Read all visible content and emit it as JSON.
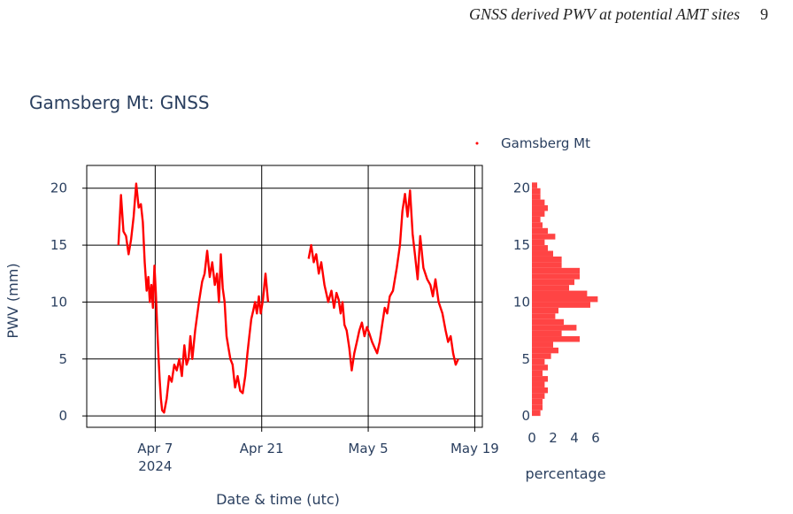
{
  "header": {
    "running_title": "GNSS derived PWV at potential AMT sites",
    "page_number": "9"
  },
  "chart_data": [
    {
      "type": "line",
      "title": "Gamsberg Mt: GNSS",
      "xlabel": "Date & time (utc)",
      "ylabel": "PWV (mm)",
      "x_ticks": [
        {
          "date": "2024-04-07",
          "label": "Apr 7",
          "sublabel": "2024"
        },
        {
          "date": "2024-04-21",
          "label": "Apr 21",
          "sublabel": ""
        },
        {
          "date": "2024-05-05",
          "label": "May 5",
          "sublabel": ""
        },
        {
          "date": "2024-05-19",
          "label": "May 19",
          "sublabel": ""
        }
      ],
      "xlim": [
        "2024-03-29",
        "2024-05-20"
      ],
      "y_ticks": [
        0,
        5,
        10,
        15,
        20
      ],
      "ylim": [
        -1,
        22
      ],
      "grid": true,
      "legend": {
        "position": "top-right",
        "entries": [
          "Gamsberg Mt"
        ]
      },
      "color": "#ff0000",
      "series": [
        {
          "name": "Gamsberg Mt",
          "segments": [
            [
              [
                "2024-04-02",
                15.0
              ],
              [
                "2024-04-02",
                19.4
              ],
              [
                "2024-04-02",
                16.2
              ],
              [
                "2024-04-03",
                15.8
              ],
              [
                "2024-04-03",
                14.2
              ],
              [
                "2024-04-03",
                15.5
              ],
              [
                "2024-04-04",
                17.5
              ],
              [
                "2024-04-04",
                20.4
              ],
              [
                "2024-04-04",
                18.3
              ],
              [
                "2024-04-05",
                18.6
              ],
              [
                "2024-04-05",
                17.0
              ],
              [
                "2024-04-05",
                13.5
              ],
              [
                "2024-04-05",
                11.0
              ],
              [
                "2024-04-06",
                12.2
              ],
              [
                "2024-04-06",
                10.0
              ],
              [
                "2024-04-06",
                11.5
              ],
              [
                "2024-04-06",
                9.5
              ],
              [
                "2024-04-06",
                13.2
              ],
              [
                "2024-04-07",
                10.8
              ],
              [
                "2024-04-07",
                8.0
              ],
              [
                "2024-04-07",
                5.5
              ],
              [
                "2024-04-07",
                3.2
              ],
              [
                "2024-04-07",
                1.5
              ],
              [
                "2024-04-07",
                0.5
              ],
              [
                "2024-04-08",
                0.3
              ],
              [
                "2024-04-08",
                1.5
              ],
              [
                "2024-04-08",
                3.5
              ],
              [
                "2024-04-09",
                3.0
              ],
              [
                "2024-04-09",
                4.5
              ],
              [
                "2024-04-09",
                4.0
              ],
              [
                "2024-04-10",
                5.0
              ],
              [
                "2024-04-10",
                3.5
              ],
              [
                "2024-04-10",
                6.2
              ],
              [
                "2024-04-11",
                4.5
              ],
              [
                "2024-04-11",
                5.0
              ],
              [
                "2024-04-11",
                7.0
              ],
              [
                "2024-04-11",
                5.0
              ],
              [
                "2024-04-12",
                7.5
              ],
              [
                "2024-04-12",
                10.0
              ],
              [
                "2024-04-13",
                11.8
              ],
              [
                "2024-04-13",
                12.5
              ],
              [
                "2024-04-13",
                14.5
              ],
              [
                "2024-04-14",
                12.2
              ],
              [
                "2024-04-14",
                13.5
              ],
              [
                "2024-04-14",
                11.5
              ],
              [
                "2024-04-15",
                12.5
              ],
              [
                "2024-04-15",
                10.0
              ],
              [
                "2024-04-15",
                14.2
              ],
              [
                "2024-04-15",
                11.2
              ],
              [
                "2024-04-16",
                10.0
              ],
              [
                "2024-04-16",
                7.0
              ],
              [
                "2024-04-16",
                6.0
              ],
              [
                "2024-04-16",
                5.0
              ],
              [
                "2024-04-17",
                4.5
              ],
              [
                "2024-04-17",
                2.5
              ],
              [
                "2024-04-17",
                3.5
              ],
              [
                "2024-04-18",
                2.2
              ],
              [
                "2024-04-18",
                2.0
              ],
              [
                "2024-04-18",
                3.5
              ],
              [
                "2024-04-19",
                5.5
              ],
              [
                "2024-04-19",
                7.0
              ],
              [
                "2024-04-19",
                8.5
              ],
              [
                "2024-04-19",
                9.2
              ],
              [
                "2024-04-20",
                10.0
              ],
              [
                "2024-04-20",
                9.0
              ],
              [
                "2024-04-20",
                10.5
              ],
              [
                "2024-04-20",
                9.0
              ],
              [
                "2024-04-21",
                10.2
              ],
              [
                "2024-04-21",
                12.5
              ],
              [
                "2024-04-21",
                10.0
              ]
            ],
            [
              [
                "2024-04-27",
                13.8
              ],
              [
                "2024-04-27",
                15.0
              ],
              [
                "2024-04-27",
                13.5
              ],
              [
                "2024-04-28",
                14.2
              ],
              [
                "2024-04-28",
                12.5
              ],
              [
                "2024-04-28",
                13.5
              ],
              [
                "2024-04-29",
                11.5
              ],
              [
                "2024-04-29",
                10.0
              ],
              [
                "2024-04-30",
                11.0
              ],
              [
                "2024-04-30",
                9.5
              ],
              [
                "2024-04-30",
                10.8
              ],
              [
                "2024-05-01",
                10.2
              ],
              [
                "2024-05-01",
                9.0
              ],
              [
                "2024-05-01",
                10.0
              ],
              [
                "2024-05-01",
                8.0
              ],
              [
                "2024-05-02",
                7.5
              ],
              [
                "2024-05-02",
                6.0
              ],
              [
                "2024-05-02",
                4.0
              ],
              [
                "2024-05-03",
                5.5
              ],
              [
                "2024-05-03",
                6.5
              ],
              [
                "2024-05-03",
                7.5
              ],
              [
                "2024-05-04",
                8.2
              ],
              [
                "2024-05-04",
                7.0
              ],
              [
                "2024-05-04",
                7.8
              ],
              [
                "2024-05-05",
                7.2
              ],
              [
                "2024-05-05",
                6.5
              ],
              [
                "2024-05-05",
                6.0
              ],
              [
                "2024-05-06",
                5.5
              ],
              [
                "2024-05-06",
                6.5
              ],
              [
                "2024-05-06",
                8.0
              ],
              [
                "2024-05-07",
                9.5
              ],
              [
                "2024-05-07",
                9.0
              ],
              [
                "2024-05-07",
                10.5
              ],
              [
                "2024-05-08",
                11.0
              ],
              [
                "2024-05-08",
                13.0
              ],
              [
                "2024-05-09",
                15.0
              ],
              [
                "2024-05-09",
                18.0
              ],
              [
                "2024-05-09",
                19.5
              ],
              [
                "2024-05-10",
                17.5
              ],
              [
                "2024-05-10",
                19.8
              ],
              [
                "2024-05-10",
                16.0
              ],
              [
                "2024-05-11",
                14.0
              ],
              [
                "2024-05-11",
                12.0
              ],
              [
                "2024-05-11",
                15.8
              ],
              [
                "2024-05-12",
                13.0
              ],
              [
                "2024-05-12",
                12.0
              ],
              [
                "2024-05-13",
                11.5
              ],
              [
                "2024-05-13",
                10.5
              ],
              [
                "2024-05-13",
                12.0
              ],
              [
                "2024-05-14",
                10.0
              ],
              [
                "2024-05-14",
                9.0
              ],
              [
                "2024-05-15",
                7.5
              ],
              [
                "2024-05-15",
                6.5
              ],
              [
                "2024-05-15",
                7.0
              ],
              [
                "2024-05-16",
                5.5
              ],
              [
                "2024-05-16",
                4.5
              ],
              [
                "2024-05-16",
                5.0
              ]
            ]
          ]
        }
      ]
    },
    {
      "type": "bar",
      "orientation": "horizontal",
      "xlabel": "percentage",
      "x_ticks": [
        0,
        2,
        4,
        6
      ],
      "xlim": [
        0,
        7
      ],
      "y_ticks": [
        0,
        5,
        10,
        15,
        20
      ],
      "ylim": [
        -1,
        22
      ],
      "color": "#ff4444",
      "bin_width": 0.5,
      "bins": [
        0,
        0.5,
        1,
        1.5,
        2,
        2.5,
        3,
        3.5,
        4,
        4.5,
        5,
        5.5,
        6,
        6.5,
        7,
        7.5,
        8,
        8.5,
        9,
        9.5,
        10,
        10.5,
        11,
        11.5,
        12,
        12.5,
        13,
        13.5,
        14,
        14.5,
        15,
        15.5,
        16,
        16.5,
        17,
        17.5,
        18,
        18.5,
        19,
        19.5,
        20
      ],
      "values": [
        0.8,
        1.0,
        1.0,
        1.2,
        1.5,
        1.2,
        1.5,
        1.0,
        1.5,
        1.2,
        1.8,
        2.5,
        2.0,
        4.5,
        2.8,
        4.2,
        3.0,
        2.2,
        2.5,
        5.5,
        6.2,
        5.2,
        3.5,
        4.0,
        4.5,
        4.5,
        2.8,
        2.8,
        2.0,
        1.5,
        1.2,
        2.2,
        1.5,
        1.0,
        0.8,
        1.2,
        1.5,
        1.2,
        0.8,
        0.8,
        0.5
      ]
    }
  ]
}
